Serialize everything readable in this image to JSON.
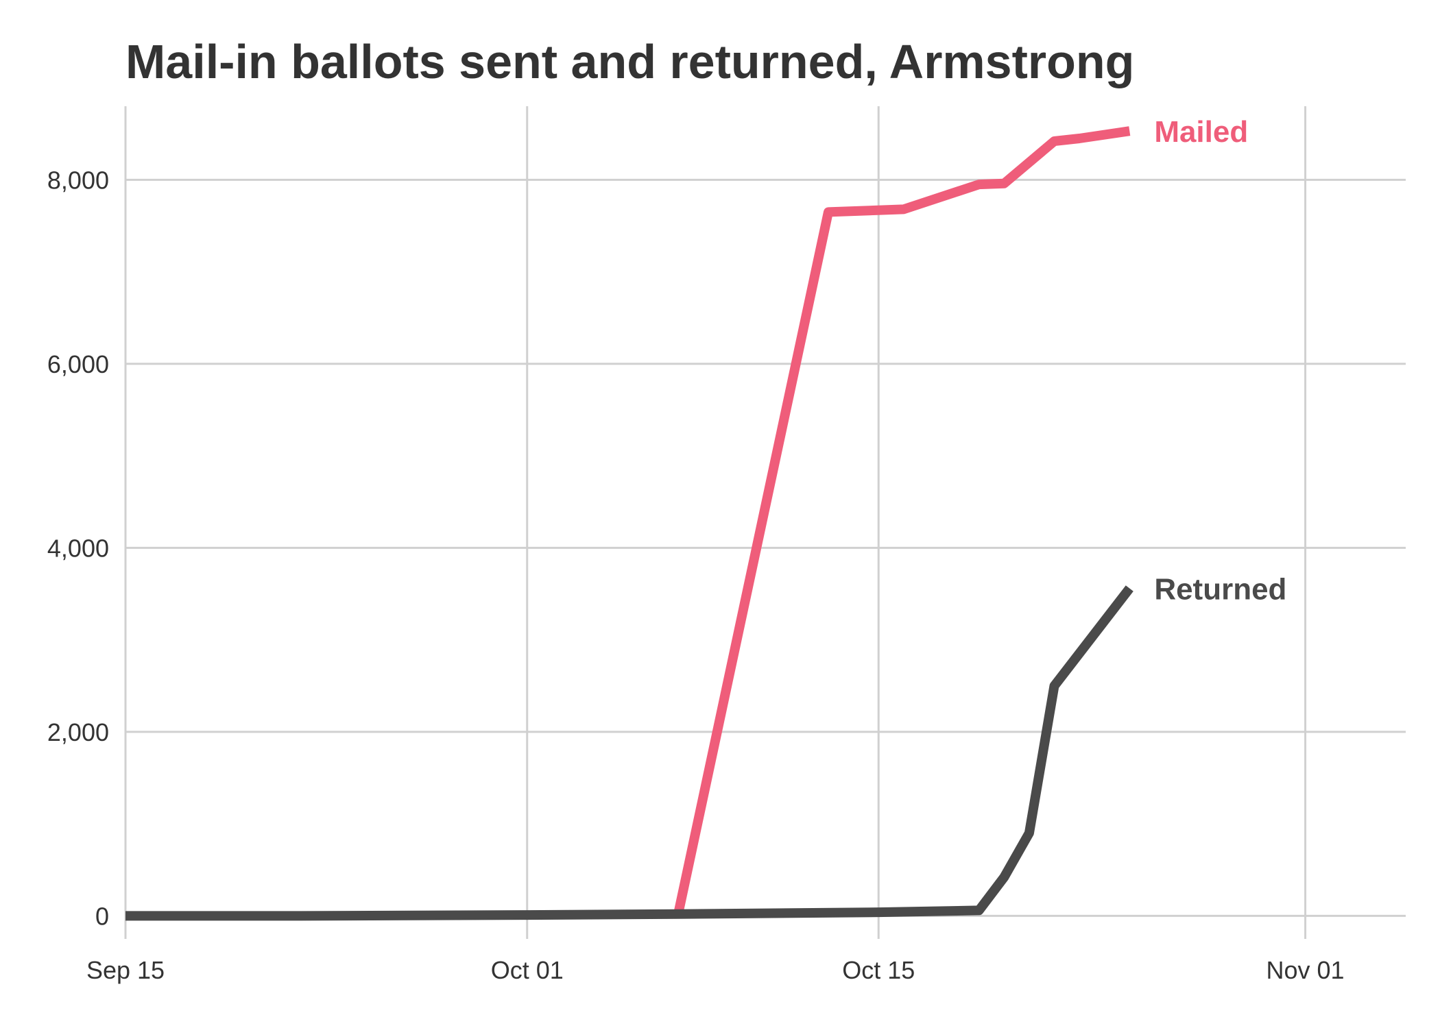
{
  "chart_data": {
    "type": "line",
    "title": "Mail-in ballots sent and returned, Armstrong",
    "xlabel": "",
    "ylabel": "",
    "x_ticks": [
      "Sep 15",
      "Oct 01",
      "Oct 15",
      "Nov 01"
    ],
    "y_ticks": [
      "0",
      "2,000",
      "4,000",
      "6,000",
      "8,000"
    ],
    "xlim": [
      "2020-09-15",
      "2020-11-05"
    ],
    "ylim": [
      -250,
      8800
    ],
    "grid": true,
    "legend": "direct labels at line ends",
    "series": [
      {
        "name": "Mailed",
        "color": "#ef5d7a",
        "points": [
          {
            "x": "2020-10-07",
            "y": 0
          },
          {
            "x": "2020-10-13",
            "y": 7650
          },
          {
            "x": "2020-10-16",
            "y": 7680
          },
          {
            "x": "2020-10-19",
            "y": 7950
          },
          {
            "x": "2020-10-20",
            "y": 7960
          },
          {
            "x": "2020-10-22",
            "y": 8420
          },
          {
            "x": "2020-10-23",
            "y": 8450
          },
          {
            "x": "2020-10-25",
            "y": 8530
          }
        ]
      },
      {
        "name": "Returned",
        "color": "#4a4a4a",
        "points": [
          {
            "x": "2020-09-15",
            "y": 0
          },
          {
            "x": "2020-09-22",
            "y": 0
          },
          {
            "x": "2020-10-01",
            "y": 10
          },
          {
            "x": "2020-10-07",
            "y": 20
          },
          {
            "x": "2020-10-15",
            "y": 40
          },
          {
            "x": "2020-10-19",
            "y": 60
          },
          {
            "x": "2020-10-20",
            "y": 420
          },
          {
            "x": "2020-10-21",
            "y": 900
          },
          {
            "x": "2020-10-22",
            "y": 2500
          },
          {
            "x": "2020-10-25",
            "y": 3560
          }
        ]
      }
    ]
  }
}
